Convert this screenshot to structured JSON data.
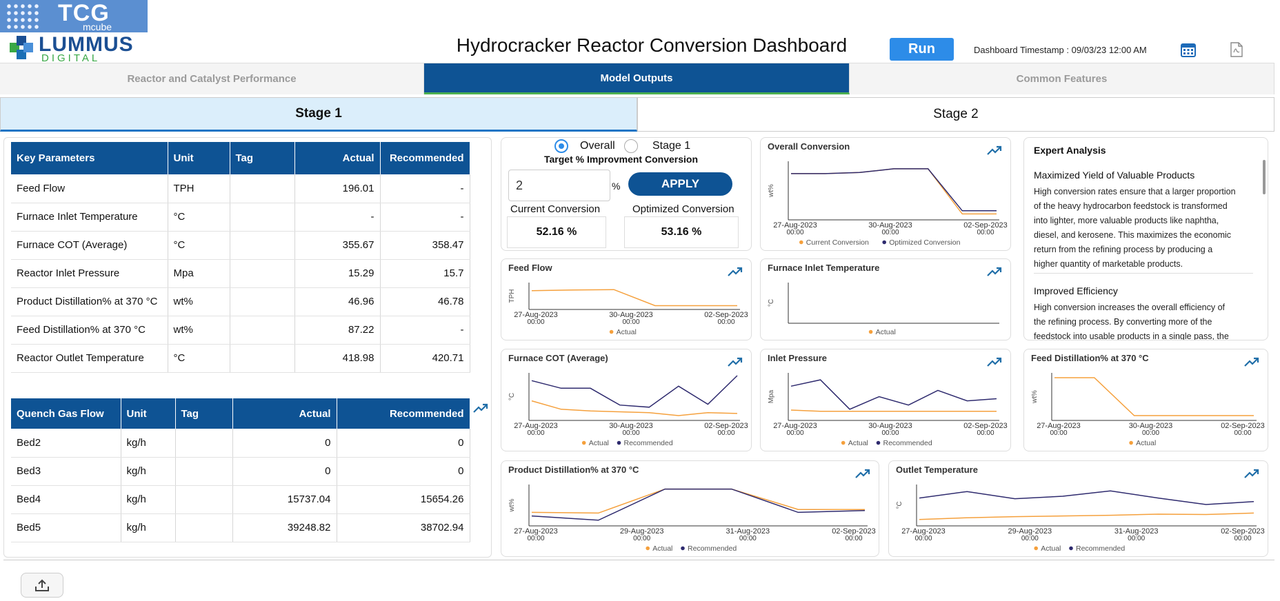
{
  "brand": {
    "tcg": "TCG",
    "tcg_sub": "mcube",
    "lummus": "LUMMUS",
    "lummus_sub": "DIGITAL"
  },
  "header": {
    "title": "Hydrocracker Reactor Conversion Dashboard",
    "run_label": "Run",
    "timestamp": "Dashboard Timestamp : 09/03/23 12:00 AM"
  },
  "tabs": [
    "Reactor and Catalyst Performance",
    "Model Outputs",
    "Common Features"
  ],
  "stages": [
    "Stage 1",
    "Stage 2"
  ],
  "key_parameters": {
    "headers": [
      "Key Parameters",
      "Unit",
      "Tag",
      "Actual",
      "Recommended"
    ],
    "rows": [
      [
        "Feed Flow",
        "TPH",
        "",
        "196.01",
        "-"
      ],
      [
        "Furnace Inlet Temperature",
        "°C",
        "",
        "-",
        "-"
      ],
      [
        "Furnace COT (Average)",
        "°C",
        "",
        "355.67",
        "358.47"
      ],
      [
        "Reactor Inlet Pressure",
        "Mpa",
        "",
        "15.29",
        "15.7"
      ],
      [
        "Product Distillation% at 370 °C",
        "wt%",
        "",
        "46.96",
        "46.78"
      ],
      [
        "Feed Distillation% at 370 °C",
        "wt%",
        "",
        "87.22",
        "-"
      ],
      [
        "Reactor Outlet Temperature",
        "°C",
        "",
        "418.98",
        "420.71"
      ]
    ]
  },
  "quench_gas": {
    "headers": [
      "Quench Gas Flow",
      "Unit",
      "Tag",
      "Actual",
      "Recommended"
    ],
    "rows": [
      [
        "Bed2",
        "kg/h",
        "",
        "0",
        "0"
      ],
      [
        "Bed3",
        "kg/h",
        "",
        "0",
        "0"
      ],
      [
        "Bed4",
        "kg/h",
        "",
        "15737.04",
        "15654.26"
      ],
      [
        "Bed5",
        "kg/h",
        "",
        "39248.82",
        "38702.94"
      ]
    ]
  },
  "control": {
    "radio_overall": "Overall",
    "radio_stage1": "Stage 1",
    "selected": "Overall",
    "target_label": "Target % Improvment Conversion",
    "target_value": "2",
    "percent": "%",
    "apply_label": "APPLY",
    "current_label": "Current Conversion",
    "current_value": "52.16 %",
    "optimized_label": "Optimized Conversion",
    "optimized_value": "53.16 %"
  },
  "expert": {
    "title": "Expert Analysis",
    "sections": [
      {
        "title": "Maximized Yield of Valuable Products",
        "lines": [
          "High conversion rates ensure that a larger proportion",
          "of the heavy hydrocarbon feedstock is transformed",
          "into lighter, more valuable products like naphtha,",
          "diesel, and kerosene. This maximizes the economic",
          "return from the refining process by producing a",
          "higher quantity of marketable products."
        ]
      },
      {
        "title": "Improved Efficiency",
        "lines": [
          "High conversion increases the overall efficiency of",
          "the refining process. By converting more of the",
          "feedstock into usable products in a single pass, the"
        ]
      }
    ]
  },
  "colors": {
    "actual": "#f5a03c",
    "recommended": "#2e2a6e",
    "accent": "#0e5394"
  },
  "chart_data": [
    {
      "id": "overall-conversion",
      "type": "line",
      "title": "Overall Conversion",
      "ylabel": "wt%",
      "xticks": [
        [
          "27-Aug-2023",
          "00:00"
        ],
        [
          "30-Aug-2023",
          "00:00"
        ],
        [
          "02-Sep-2023",
          "00:00"
        ]
      ],
      "ylim": [
        0,
        100
      ],
      "series": [
        {
          "name": "Current Conversion",
          "color": "#f5a03c",
          "values": [
            82,
            82,
            84,
            91,
            91,
            6,
            6
          ]
        },
        {
          "name": "Optimized Conversion",
          "color": "#2e2a6e",
          "values": [
            82,
            82,
            84,
            91,
            91,
            12,
            12
          ]
        }
      ]
    },
    {
      "id": "feed-flow",
      "type": "line",
      "title": "Feed Flow",
      "ylabel": "TPH",
      "xticks": [
        [
          "27-Aug-2023",
          "00:00"
        ],
        [
          "30-Aug-2023",
          "00:00"
        ],
        [
          "02-Sep-2023",
          "00:00"
        ]
      ],
      "ylim": [
        0,
        100
      ],
      "series": [
        {
          "name": "Actual",
          "color": "#f5a03c",
          "values": [
            75,
            78,
            80,
            5,
            5,
            5
          ]
        }
      ]
    },
    {
      "id": "furnace-inlet-temperature",
      "type": "line",
      "title": "Furnace Inlet Temperature",
      "ylabel": "°C",
      "xticks": [],
      "ylim": [
        0,
        100
      ],
      "series": [
        {
          "name": "Actual",
          "color": "#f5a03c",
          "values": []
        }
      ]
    },
    {
      "id": "furnace-cot",
      "type": "line",
      "title": "Furnace COT (Average)",
      "ylabel": "°C",
      "xticks": [
        [
          "27-Aug-2023",
          "00:00"
        ],
        [
          "30-Aug-2023",
          "00:00"
        ],
        [
          "02-Sep-2023",
          "00:00"
        ]
      ],
      "ylim": [
        0,
        100
      ],
      "series": [
        {
          "name": "Actual",
          "color": "#f5a03c",
          "values": [
            40,
            20,
            16,
            14,
            12,
            5,
            12,
            10
          ]
        },
        {
          "name": "Recommended",
          "color": "#2e2a6e",
          "values": [
            88,
            70,
            70,
            30,
            25,
            75,
            32,
            100
          ]
        }
      ]
    },
    {
      "id": "inlet-pressure",
      "type": "line",
      "title": "Inlet Pressure",
      "ylabel": "Mpa",
      "xticks": [
        [
          "27-Aug-2023",
          "00:00"
        ],
        [
          "30-Aug-2023",
          "00:00"
        ],
        [
          "02-Sep-2023",
          "00:00"
        ]
      ],
      "ylim": [
        0,
        100
      ],
      "series": [
        {
          "name": "Actual",
          "color": "#f5a03c",
          "values": [
            18,
            15,
            15,
            15,
            15,
            15,
            15,
            15
          ]
        },
        {
          "name": "Recommended",
          "color": "#2e2a6e",
          "values": [
            75,
            90,
            20,
            50,
            30,
            65,
            40,
            45
          ]
        }
      ]
    },
    {
      "id": "feed-distillation",
      "type": "line",
      "title": "Feed Distillation% at 370 °C",
      "ylabel": "wt%",
      "xticks": [
        [
          "27-Aug-2023",
          "00:00"
        ],
        [
          "30-Aug-2023",
          "00:00"
        ],
        [
          "02-Sep-2023",
          "00:00"
        ]
      ],
      "ylim": [
        0,
        100
      ],
      "series": [
        {
          "name": "Actual",
          "color": "#f5a03c",
          "values": [
            95,
            95,
            5,
            5,
            5,
            5
          ]
        }
      ]
    },
    {
      "id": "product-distillation",
      "type": "line",
      "title": "Product Distillation% at 370 °C",
      "ylabel": "wt%",
      "xticks": [
        [
          "27-Aug-2023",
          "00:00"
        ],
        [
          "29-Aug-2023",
          "00:00"
        ],
        [
          "31-Aug-2023",
          "00:00"
        ],
        [
          "02-Sep-2023",
          "00:00"
        ]
      ],
      "ylim": [
        0,
        100
      ],
      "series": [
        {
          "name": "Actual",
          "color": "#f5a03c",
          "values": [
            30,
            28,
            95,
            95,
            38,
            38
          ]
        },
        {
          "name": "Recommended",
          "color": "#2e2a6e",
          "values": [
            20,
            8,
            95,
            95,
            30,
            35
          ]
        }
      ]
    },
    {
      "id": "outlet-temperature",
      "type": "line",
      "title": "Outlet Temperature",
      "ylabel": "°C",
      "xticks": [
        [
          "27-Aug-2023",
          "00:00"
        ],
        [
          "29-Aug-2023",
          "00:00"
        ],
        [
          "31-Aug-2023",
          "00:00"
        ],
        [
          "02-Sep-2023",
          "00:00"
        ]
      ],
      "ylim": [
        0,
        100
      ],
      "series": [
        {
          "name": "Actual",
          "color": "#f5a03c",
          "values": [
            10,
            15,
            18,
            20,
            22,
            25,
            24,
            28
          ]
        },
        {
          "name": "Recommended",
          "color": "#2e2a6e",
          "values": [
            70,
            88,
            68,
            75,
            90,
            70,
            52,
            60
          ]
        }
      ]
    }
  ]
}
